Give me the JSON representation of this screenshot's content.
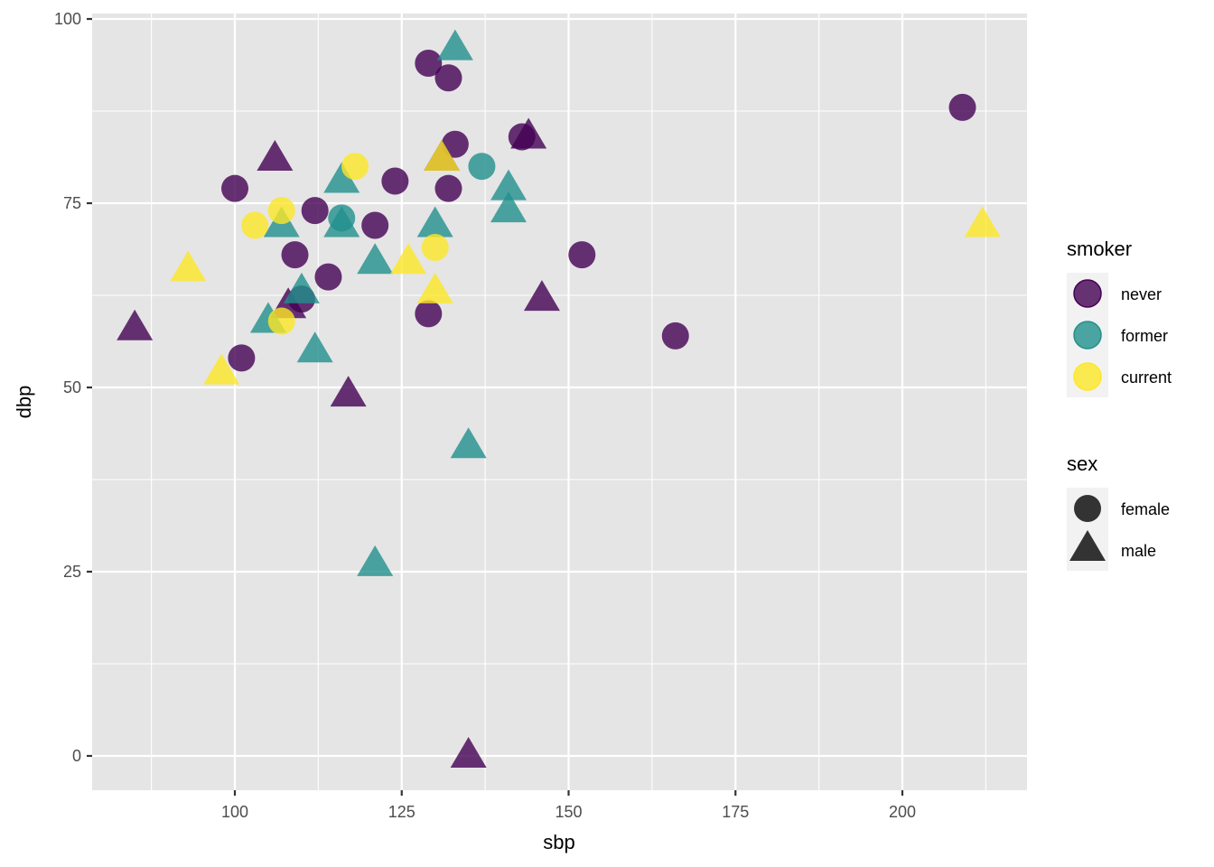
{
  "chart_data": {
    "type": "scatter",
    "title": "",
    "xlabel": "sbp",
    "ylabel": "dbp",
    "xlim": [
      78,
      218
    ],
    "ylim": [
      -4.6,
      100.8
    ],
    "x_ticks": [
      100,
      125,
      150,
      175,
      200
    ],
    "y_ticks": [
      0,
      25,
      50,
      75,
      100
    ],
    "grid": true,
    "legend_position": "right",
    "colors": {
      "never": "#440154",
      "former": "#21908C",
      "current": "#FDE725",
      "panel_bg": "#E5E5E5",
      "grid": "#FFFFFF",
      "legend_key_bg": "#F2F2F2",
      "sex_key": "#333333"
    },
    "legends": [
      {
        "title": "smoker",
        "aesthetic": "colour",
        "entries": [
          "never",
          "former",
          "current"
        ]
      },
      {
        "title": "sex",
        "aesthetic": "shape",
        "entries": [
          "female",
          "male"
        ],
        "shapes": [
          "circle",
          "triangle"
        ]
      }
    ],
    "series": [
      {
        "name": "never / female",
        "smoker": "never",
        "sex": "female",
        "points": [
          [
            100,
            77
          ],
          [
            101,
            54
          ],
          [
            109,
            68
          ],
          [
            110,
            62
          ],
          [
            112,
            74
          ],
          [
            114,
            65
          ],
          [
            121,
            72
          ],
          [
            124,
            78
          ],
          [
            129,
            94
          ],
          [
            129,
            60
          ],
          [
            132,
            92
          ],
          [
            132,
            77
          ],
          [
            133,
            83
          ],
          [
            143,
            84
          ],
          [
            152,
            68
          ],
          [
            166,
            57
          ],
          [
            209,
            88
          ]
        ]
      },
      {
        "name": "never / male",
        "smoker": "never",
        "sex": "male",
        "points": [
          [
            85,
            58
          ],
          [
            106,
            81
          ],
          [
            108,
            61
          ],
          [
            117,
            49
          ],
          [
            131,
            81
          ],
          [
            135,
            0
          ],
          [
            144,
            84
          ],
          [
            146,
            62
          ]
        ]
      },
      {
        "name": "former / female",
        "smoker": "former",
        "sex": "female",
        "points": [
          [
            116,
            73
          ],
          [
            137,
            80
          ]
        ]
      },
      {
        "name": "former / male",
        "smoker": "former",
        "sex": "male",
        "points": [
          [
            105,
            59
          ],
          [
            107,
            72
          ],
          [
            110,
            63
          ],
          [
            112,
            55
          ],
          [
            116,
            78
          ],
          [
            116,
            72
          ],
          [
            121,
            67
          ],
          [
            121,
            26
          ],
          [
            130,
            72
          ],
          [
            133,
            96
          ],
          [
            135,
            42
          ],
          [
            141,
            77
          ],
          [
            141,
            74
          ]
        ]
      },
      {
        "name": "current / female",
        "smoker": "current",
        "sex": "female",
        "points": [
          [
            103,
            72
          ],
          [
            107,
            74
          ],
          [
            107,
            59
          ],
          [
            118,
            80
          ],
          [
            130,
            69
          ]
        ]
      },
      {
        "name": "current / male",
        "smoker": "current",
        "sex": "male",
        "points": [
          [
            93,
            66
          ],
          [
            98,
            52
          ],
          [
            126,
            67
          ],
          [
            130,
            63
          ],
          [
            131,
            81
          ],
          [
            212,
            72
          ]
        ]
      }
    ]
  },
  "axes": {
    "x_title": "sbp",
    "y_title": "dbp",
    "x_tick_labels": [
      "100",
      "125",
      "150",
      "175",
      "200"
    ],
    "y_tick_labels": [
      "0",
      "25",
      "50",
      "75",
      "100"
    ]
  },
  "legend": {
    "smoker_title": "smoker",
    "smoker_items": [
      "never",
      "former",
      "current"
    ],
    "sex_title": "sex",
    "sex_items": [
      "female",
      "male"
    ]
  }
}
